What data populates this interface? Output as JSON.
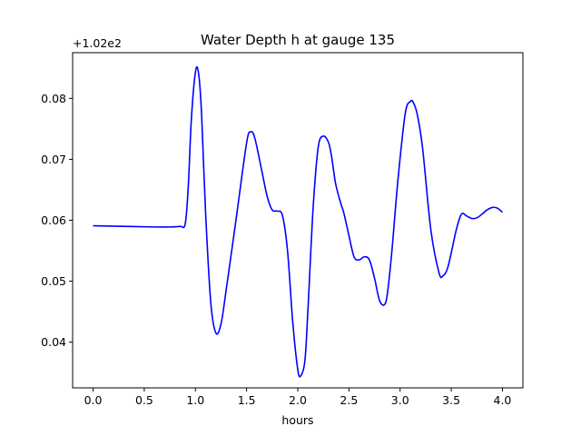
{
  "chart_data": {
    "type": "line",
    "title": "Water Depth h at gauge 135",
    "xlabel": "hours",
    "ylabel": "",
    "offset_label": "+1.02e2",
    "xlim": [
      -0.2,
      4.2
    ],
    "ylim": [
      0.0325,
      0.0875
    ],
    "xticks": [
      0.0,
      0.5,
      1.0,
      1.5,
      2.0,
      2.5,
      3.0,
      3.5,
      4.0
    ],
    "xtick_labels": [
      "0.0",
      "0.5",
      "1.0",
      "1.5",
      "2.0",
      "2.5",
      "3.0",
      "3.5",
      "4.0"
    ],
    "yticks": [
      0.04,
      0.05,
      0.06,
      0.07,
      0.08
    ],
    "ytick_labels": [
      "0.04",
      "0.05",
      "0.06",
      "0.07",
      "0.08"
    ],
    "grid": false,
    "series": [
      {
        "color": "#0000ff",
        "x": [
          0.0,
          0.3,
          0.6,
          0.75,
          0.85,
          0.9,
          0.93,
          0.96,
          1.0,
          1.03,
          1.06,
          1.1,
          1.15,
          1.2,
          1.25,
          1.3,
          1.4,
          1.5,
          1.54,
          1.58,
          1.65,
          1.7,
          1.75,
          1.8,
          1.85,
          1.9,
          1.95,
          2.0,
          2.03,
          2.07,
          2.1,
          2.15,
          2.2,
          2.25,
          2.3,
          2.33,
          2.37,
          2.42,
          2.45,
          2.5,
          2.55,
          2.6,
          2.65,
          2.7,
          2.75,
          2.8,
          2.85,
          2.88,
          2.92,
          2.98,
          3.05,
          3.1,
          3.13,
          3.17,
          3.22,
          3.3,
          3.38,
          3.42,
          3.47,
          3.55,
          3.6,
          3.65,
          3.7,
          3.75,
          3.8,
          3.85,
          3.9,
          3.95,
          4.0
        ],
        "y": [
          0.0591,
          0.059,
          0.0589,
          0.0589,
          0.059,
          0.0594,
          0.0655,
          0.0765,
          0.0843,
          0.0842,
          0.0775,
          0.061,
          0.0465,
          0.0415,
          0.043,
          0.0485,
          0.0605,
          0.0727,
          0.0745,
          0.0735,
          0.068,
          0.064,
          0.0617,
          0.0615,
          0.0608,
          0.055,
          0.0435,
          0.0355,
          0.0345,
          0.037,
          0.0455,
          0.062,
          0.072,
          0.0738,
          0.0728,
          0.0705,
          0.066,
          0.0628,
          0.0612,
          0.0575,
          0.054,
          0.0535,
          0.054,
          0.0535,
          0.0505,
          0.0468,
          0.0462,
          0.0485,
          0.055,
          0.0668,
          0.0775,
          0.0795,
          0.0793,
          0.0772,
          0.0718,
          0.0585,
          0.0514,
          0.0509,
          0.0525,
          0.0585,
          0.061,
          0.0607,
          0.0603,
          0.0604,
          0.061,
          0.0617,
          0.0621,
          0.062,
          0.0613
        ]
      }
    ]
  }
}
